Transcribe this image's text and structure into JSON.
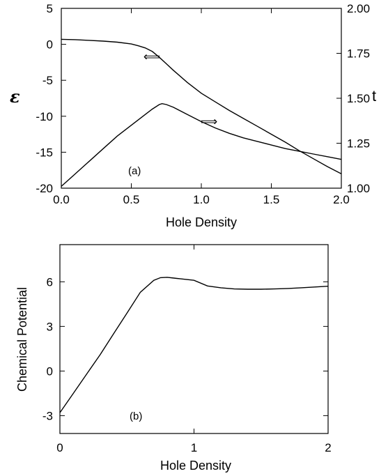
{
  "chart_data": [
    {
      "type": "line",
      "panel_label": "(a)",
      "xlabel": "Hole Density",
      "ylabel": "ε",
      "y2label": "t",
      "xlim": [
        0.0,
        2.0
      ],
      "ylim": [
        -20,
        5
      ],
      "y2lim": [
        1.0,
        2.0
      ],
      "x_ticks": [
        "0.0",
        "0.5",
        "1.0",
        "1.5",
        "2.0"
      ],
      "y_ticks": [
        "5",
        "0",
        "-5",
        "-10",
        "-15",
        "-20"
      ],
      "y2_ticks": [
        "2.00",
        "1.75",
        "1.50",
        "1.25",
        "1.00"
      ],
      "series": [
        {
          "axis": "left",
          "marker": "⟸",
          "x": [
            0.0,
            0.1,
            0.2,
            0.3,
            0.4,
            0.5,
            0.55,
            0.6,
            0.65,
            0.7,
            0.75,
            0.8,
            0.9,
            1.0,
            1.1,
            1.2,
            1.3,
            1.4,
            1.5,
            1.6,
            1.7,
            1.8,
            1.9,
            2.0
          ],
          "values": [
            0.7,
            0.65,
            0.55,
            0.45,
            0.3,
            0.05,
            -0.2,
            -0.5,
            -1.0,
            -1.8,
            -2.7,
            -3.6,
            -5.3,
            -6.8,
            -8.0,
            -9.2,
            -10.3,
            -11.4,
            -12.5,
            -13.6,
            -14.8,
            -15.9,
            -17.0,
            -18.0
          ]
        },
        {
          "axis": "right",
          "marker": "⟹",
          "x": [
            0.0,
            0.1,
            0.2,
            0.3,
            0.4,
            0.5,
            0.6,
            0.65,
            0.7,
            0.72,
            0.75,
            0.8,
            0.9,
            1.0,
            1.1,
            1.2,
            1.3,
            1.4,
            1.5,
            1.6,
            1.7,
            1.8,
            1.9,
            2.0
          ],
          "values": [
            1.01,
            1.08,
            1.15,
            1.22,
            1.29,
            1.35,
            1.41,
            1.44,
            1.465,
            1.47,
            1.465,
            1.45,
            1.41,
            1.37,
            1.335,
            1.305,
            1.28,
            1.26,
            1.24,
            1.22,
            1.205,
            1.19,
            1.175,
            1.16
          ]
        }
      ]
    },
    {
      "type": "line",
      "panel_label": "(b)",
      "xlabel": "Hole Density",
      "ylabel": "Chemical Potential",
      "xlim": [
        0,
        2
      ],
      "ylim": [
        -4.2,
        8.5
      ],
      "x_ticks": [
        "0",
        "1",
        "2"
      ],
      "y_ticks": [
        "6",
        "3",
        "0",
        "-3"
      ],
      "series": [
        {
          "x": [
            0.0,
            0.1,
            0.2,
            0.3,
            0.4,
            0.5,
            0.6,
            0.7,
            0.75,
            0.8,
            0.85,
            0.9,
            1.0,
            1.1,
            1.2,
            1.3,
            1.4,
            1.5,
            1.6,
            1.7,
            1.8,
            1.9,
            2.0
          ],
          "values": [
            -2.8,
            -1.5,
            -0.2,
            1.1,
            2.5,
            3.9,
            5.3,
            6.1,
            6.28,
            6.3,
            6.25,
            6.2,
            6.1,
            5.72,
            5.6,
            5.52,
            5.5,
            5.5,
            5.52,
            5.55,
            5.6,
            5.65,
            5.7
          ]
        }
      ]
    }
  ]
}
